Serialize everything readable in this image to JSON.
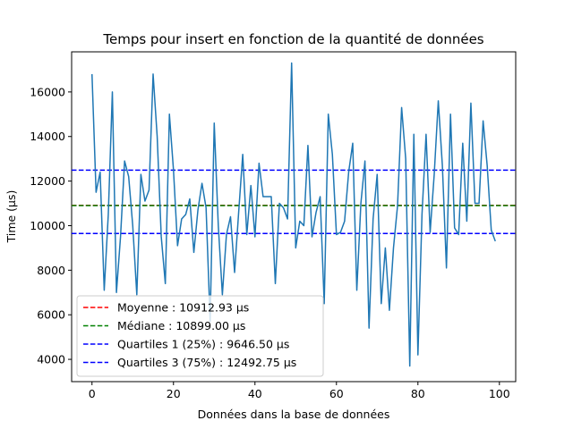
{
  "chart_data": {
    "type": "line",
    "title": "Temps pour insert en fonction de la quantité de données",
    "xlabel": "Données dans la base de données",
    "ylabel": "Time (µs)",
    "xlim": [
      -5,
      104
    ],
    "ylim": [
      3000,
      17800
    ],
    "xticks": [
      0,
      20,
      40,
      60,
      80,
      100
    ],
    "yticks": [
      4000,
      6000,
      8000,
      10000,
      12000,
      14000,
      16000
    ],
    "grid": false,
    "legend_position": "lower-left",
    "series": [
      {
        "color": "#1f77b4",
        "x": [
          0,
          1,
          2,
          3,
          4,
          5,
          6,
          7,
          8,
          9,
          10,
          11,
          12,
          13,
          14,
          15,
          16,
          17,
          18,
          19,
          20,
          21,
          22,
          23,
          24,
          25,
          26,
          27,
          28,
          29,
          30,
          31,
          32,
          33,
          34,
          35,
          36,
          37,
          38,
          39,
          40,
          41,
          42,
          43,
          44,
          45,
          46,
          47,
          48,
          49,
          50,
          51,
          52,
          53,
          54,
          55,
          56,
          57,
          58,
          59,
          60,
          61,
          62,
          63,
          64,
          65,
          66,
          67,
          68,
          69,
          70,
          71,
          72,
          73,
          74,
          75,
          76,
          77,
          78,
          79,
          80,
          81,
          82,
          83,
          84,
          85,
          86,
          87,
          88,
          89,
          90,
          91,
          92,
          93,
          94,
          95,
          96,
          97,
          98,
          99
        ],
        "values": [
          16800,
          11500,
          12400,
          7100,
          10500,
          16000,
          7000,
          9500,
          12900,
          12200,
          10000,
          6900,
          12300,
          11100,
          11600,
          16800,
          14000,
          9500,
          7400,
          15000,
          12500,
          9100,
          10300,
          10500,
          11200,
          8800,
          10700,
          11900,
          10800,
          5700,
          14600,
          10000,
          6900,
          9600,
          10400,
          7900,
          10600,
          13200,
          9600,
          11800,
          9500,
          12800,
          11300,
          11300,
          11300,
          7400,
          11000,
          10800,
          10300,
          17300,
          9000,
          10200,
          10000,
          13600,
          9500,
          10600,
          11300,
          6500,
          15000,
          13200,
          9600,
          9700,
          10200,
          12400,
          13700,
          7100,
          11000,
          12900,
          5400,
          10300,
          12300,
          6500,
          9000,
          6200,
          9000,
          10900,
          15300,
          13000,
          3700,
          14100,
          4200,
          10500,
          14100,
          9700,
          12300,
          15600,
          12700,
          8100,
          15000,
          9900,
          9600,
          13700,
          10200,
          15500,
          11000,
          11000,
          14700,
          12700,
          9800,
          9300
        ]
      }
    ],
    "reference_lines": [
      {
        "label": "Moyenne : 10912.93 µs",
        "value": 10912.93,
        "color": "#ff0000"
      },
      {
        "label": "Médiane : 10899.00 µs",
        "value": 10899.0,
        "color": "#008000"
      },
      {
        "label": "Quartiles 1 (25%) : 9646.50 µs",
        "value": 9646.5,
        "color": "#0000ff"
      },
      {
        "label": "Quartiles 3 (75%) : 12492.75 µs",
        "value": 12492.75,
        "color": "#0000ff"
      }
    ]
  }
}
